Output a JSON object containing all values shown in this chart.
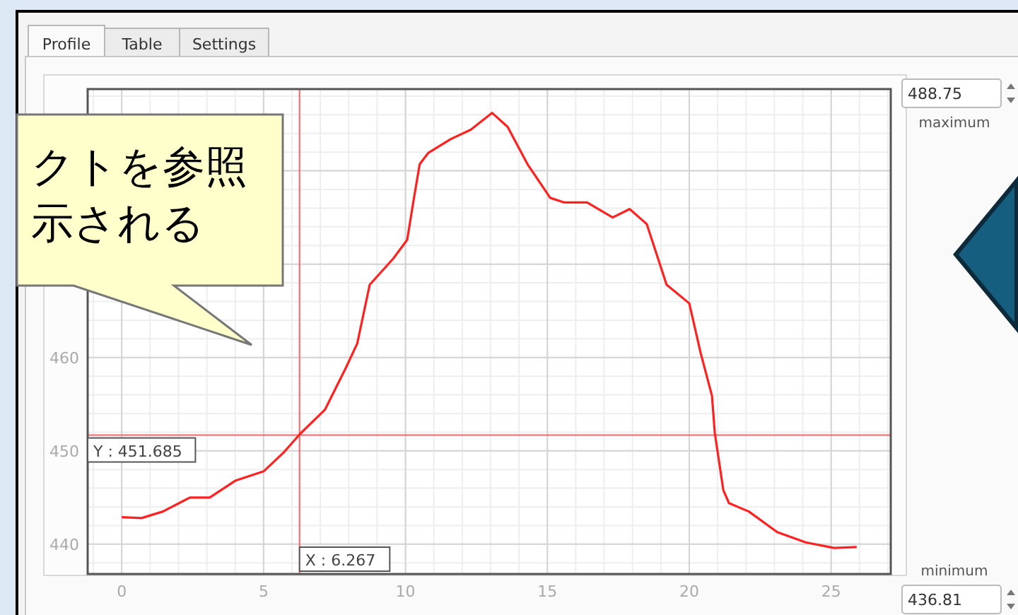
{
  "chart_data": {
    "type": "line",
    "annotations": [
      "Profile",
      "Table",
      "Settings",
      "488.75",
      "maximum",
      "436.81",
      "minimum",
      "クトを参照",
      "示される"
    ],
    "x": [
      0,
      0.7,
      1.45,
      2.4,
      3.1,
      4.0,
      5.0,
      5.7,
      6.28,
      7.16,
      7.9,
      8.3,
      8.74,
      9.57,
      10.06,
      10.3,
      10.5,
      10.8,
      11.6,
      12.3,
      13.05,
      13.6,
      14.3,
      15.1,
      15.6,
      16.4,
      17.3,
      17.9,
      18.5,
      18.9,
      19.2,
      20.0,
      20.4,
      20.8,
      20.9,
      21.2,
      21.4,
      22.1,
      23.1,
      24.1,
      25.1,
      25.9
    ],
    "series": [
      {
        "color": "#ff2020",
        "values": [
          442.9,
          442.8,
          443.5,
          445.0,
          445.0,
          446.8,
          447.8,
          449.8,
          451.8,
          454.4,
          458.9,
          461.5,
          467.8,
          470.6,
          472.6,
          477.1,
          480.7,
          481.9,
          483.4,
          484.4,
          486.2,
          484.7,
          480.7,
          477.1,
          476.6,
          476.6,
          475.0,
          475.9,
          474.3,
          470.6,
          467.8,
          465.8,
          460.5,
          455.9,
          451.9,
          445.8,
          444.4,
          443.5,
          441.3,
          440.2,
          439.6,
          439.7
        ]
      }
    ],
    "xlim": [
      -1.2,
      27.1
    ],
    "ylim": [
      436.81,
      488.75
    ],
    "xticks": [
      0,
      5,
      10,
      15,
      20,
      25
    ],
    "yticks": [
      440,
      450,
      460,
      {
        "value": 470,
        "label": null
      },
      {
        "value": 480,
        "label": null
      }
    ],
    "grid": true,
    "line_style": "solid",
    "marker": "none",
    "ref_lines": [
      {
        "axis": "x",
        "value": 6.267,
        "label": "X : 6.267",
        "color": "#ff6060"
      },
      {
        "axis": "y",
        "value": 451.685,
        "label": "Y : 451.685",
        "color": "#ff6060"
      }
    ]
  }
}
